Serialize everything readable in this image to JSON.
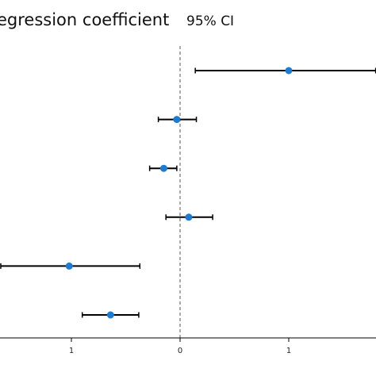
{
  "chart_data": {
    "type": "scatter",
    "title": "egression coefficient",
    "subtitle": "95% CI",
    "xlabel": "",
    "ylabel": "",
    "xlim": [
      -1.65,
      1.8
    ],
    "x_ticks": [
      -1,
      0,
      1
    ],
    "x_tick_labels": [
      "1",
      "0",
      "1"
    ],
    "reference_line": 0,
    "grid": false,
    "points": [
      {
        "x": 1.0,
        "ci_low": 0.14,
        "ci_high": 1.8
      },
      {
        "x": -0.03,
        "ci_low": -0.2,
        "ci_high": 0.15
      },
      {
        "x": -0.15,
        "ci_low": -0.28,
        "ci_high": -0.03
      },
      {
        "x": 0.08,
        "ci_low": -0.13,
        "ci_high": 0.3
      },
      {
        "x": -1.02,
        "ci_low": -1.65,
        "ci_high": -0.37
      },
      {
        "x": -0.64,
        "ci_low": -0.9,
        "ci_high": -0.38
      }
    ],
    "colors": {
      "point": "#1f7bd0",
      "line": "#000000",
      "reference": "#555555"
    }
  }
}
